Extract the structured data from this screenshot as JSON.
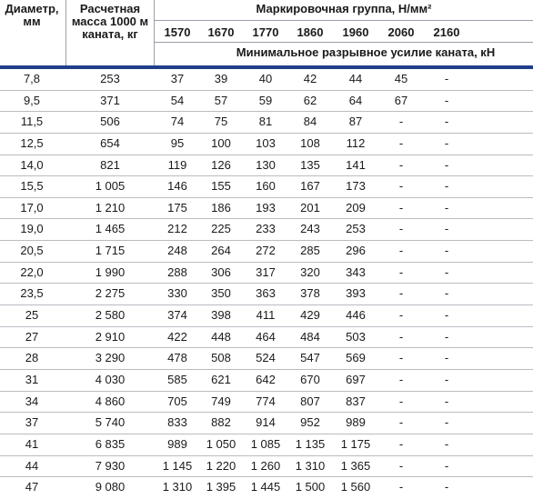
{
  "header": {
    "diameter_label": "Диаметр, мм",
    "mass_label": "Расчетная масса 1000 м каната, кг",
    "group_label": "Маркировочная группа, Н/мм²",
    "strength_label": "Минимальное разрывное усилие каната, кН",
    "grades": [
      "1570",
      "1670",
      "1770",
      "1860",
      "1960",
      "2060",
      "2160"
    ]
  },
  "colors": {
    "accent_bar": "#1f3f8a",
    "grid_line": "#b8bcc2"
  },
  "rows": [
    {
      "d": "7,8",
      "m": "253",
      "v": [
        "37",
        "39",
        "40",
        "42",
        "44",
        "45",
        "-"
      ]
    },
    {
      "d": "9,5",
      "m": "371",
      "v": [
        "54",
        "57",
        "59",
        "62",
        "64",
        "67",
        "-"
      ]
    },
    {
      "d": "11,5",
      "m": "506",
      "v": [
        "74",
        "75",
        "81",
        "84",
        "87",
        "-",
        "-"
      ]
    },
    {
      "d": "12,5",
      "m": "654",
      "v": [
        "95",
        "100",
        "103",
        "108",
        "112",
        "-",
        "-"
      ]
    },
    {
      "d": "14,0",
      "m": "821",
      "v": [
        "119",
        "126",
        "130",
        "135",
        "141",
        "-",
        "-"
      ]
    },
    {
      "d": "15,5",
      "m": "1 005",
      "v": [
        "146",
        "155",
        "160",
        "167",
        "173",
        "-",
        "-"
      ]
    },
    {
      "d": "17,0",
      "m": "1 210",
      "v": [
        "175",
        "186",
        "193",
        "201",
        "209",
        "-",
        "-"
      ]
    },
    {
      "d": "19,0",
      "m": "1 465",
      "v": [
        "212",
        "225",
        "233",
        "243",
        "253",
        "-",
        "-"
      ]
    },
    {
      "d": "20,5",
      "m": "1 715",
      "v": [
        "248",
        "264",
        "272",
        "285",
        "296",
        "-",
        "-"
      ]
    },
    {
      "d": "22,0",
      "m": "1 990",
      "v": [
        "288",
        "306",
        "317",
        "320",
        "343",
        "-",
        "-"
      ]
    },
    {
      "d": "23,5",
      "m": "2 275",
      "v": [
        "330",
        "350",
        "363",
        "378",
        "393",
        "-",
        "-"
      ]
    },
    {
      "d": "25",
      "m": "2 580",
      "v": [
        "374",
        "398",
        "411",
        "429",
        "446",
        "-",
        "-"
      ]
    },
    {
      "d": "27",
      "m": "2 910",
      "v": [
        "422",
        "448",
        "464",
        "484",
        "503",
        "-",
        "-"
      ]
    },
    {
      "d": "28",
      "m": "3 290",
      "v": [
        "478",
        "508",
        "524",
        "547",
        "569",
        "-",
        "-"
      ]
    },
    {
      "d": "31",
      "m": "4 030",
      "v": [
        "585",
        "621",
        "642",
        "670",
        "697",
        "-",
        "-"
      ]
    },
    {
      "d": "34",
      "m": "4 860",
      "v": [
        "705",
        "749",
        "774",
        "807",
        "837",
        "-",
        "-"
      ]
    },
    {
      "d": "37",
      "m": "5 740",
      "v": [
        "833",
        "882",
        "914",
        "952",
        "989",
        "-",
        "-"
      ]
    },
    {
      "d": "41",
      "m": "6 835",
      "v": [
        "989",
        "1 050",
        "1 085",
        "1 135",
        "1 175",
        "-",
        "-"
      ]
    },
    {
      "d": "44",
      "m": "7 930",
      "v": [
        "1 145",
        "1 220",
        "1 260",
        "1 310",
        "1 365",
        "-",
        "-"
      ]
    },
    {
      "d": "47",
      "m": "9 080",
      "v": [
        "1 310",
        "1 395",
        "1 445",
        "1 500",
        "1 560",
        "-",
        "-"
      ]
    }
  ]
}
